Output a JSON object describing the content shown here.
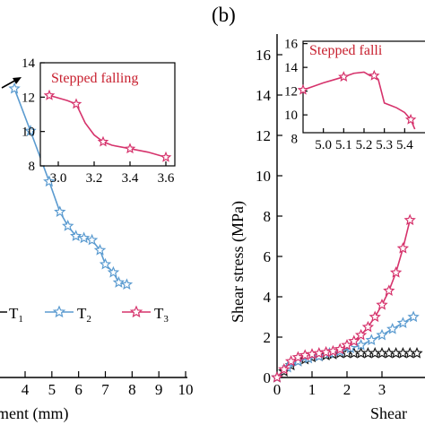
{
  "panel_b_label": "(b)",
  "colors": {
    "T1": "#1a1a1a",
    "T2": "#5b9bd0",
    "T3": "#d6336c",
    "annotation": "#c8202f"
  },
  "chart_data": [
    {
      "type": "line",
      "panel": "a (partially visible)",
      "xlabel": "ment (mm)",
      "ylabel": "",
      "xlim": [
        3.4,
        10
      ],
      "ylim": [
        0,
        17
      ],
      "xticks": [
        "4",
        "5",
        "6",
        "7",
        "8",
        "9",
        "10"
      ],
      "legend": {
        "placement": "lower-left",
        "entries": [
          {
            "name_text": "T",
            "sub": "1",
            "key": "T1"
          },
          {
            "name_text": "T",
            "sub": "2",
            "key": "T2"
          },
          {
            "name_text": "T",
            "sub": "3",
            "key": "T3"
          }
        ]
      },
      "series": [
        {
          "name": "T2",
          "x": [
            3.6,
            4.2,
            4.9,
            5.3,
            5.6,
            5.9,
            6.2,
            6.5,
            6.8,
            7.0,
            7.3,
            7.5,
            7.8
          ],
          "y": [
            14.3,
            12.2,
            9.7,
            8.2,
            7.5,
            7.0,
            6.9,
            6.8,
            6.3,
            5.6,
            5.2,
            4.7,
            4.6
          ]
        }
      ],
      "inset": {
        "annotation": "Stepped falling",
        "xlim": [
          2.9,
          3.65
        ],
        "ylim": [
          8,
          14
        ],
        "xticks": [
          "3.0",
          "3.2",
          "3.4",
          "3.6"
        ],
        "yticks": [
          "8",
          "10",
          "12",
          "14"
        ],
        "series": [
          {
            "name": "T3",
            "x": [
              2.95,
              3.05,
              3.1,
              3.15,
              3.2,
              3.25,
              3.3,
              3.4,
              3.5,
              3.6
            ],
            "y": [
              12.1,
              11.8,
              11.6,
              10.5,
              9.8,
              9.4,
              9.2,
              9.0,
              8.8,
              8.5
            ],
            "markers": [
              0,
              2,
              5,
              7,
              9
            ]
          }
        ]
      }
    },
    {
      "type": "line",
      "panel": "b",
      "xlabel": "Shear",
      "ylabel": "Shear stress (MPa)",
      "xlim": [
        0,
        4
      ],
      "ylim": [
        0,
        16
      ],
      "xticks": [
        "0",
        "1",
        "2",
        "3"
      ],
      "yticks": [
        "0",
        "2",
        "4",
        "6",
        "8",
        "10",
        "12",
        "14",
        "16"
      ],
      "series": [
        {
          "name": "T1",
          "x": [
            0.0,
            0.2,
            0.4,
            0.6,
            0.8,
            1.0,
            1.2,
            1.4,
            1.6,
            1.8,
            2.0,
            2.2,
            2.4,
            2.6,
            2.8,
            3.0,
            3.2,
            3.4,
            3.6,
            3.8,
            4.0
          ],
          "y": [
            0.0,
            0.3,
            0.6,
            0.8,
            0.9,
            1.0,
            1.05,
            1.1,
            1.15,
            1.2,
            1.2,
            1.2,
            1.2,
            1.2,
            1.2,
            1.2,
            1.2,
            1.2,
            1.2,
            1.2,
            1.2
          ]
        },
        {
          "name": "T2",
          "x": [
            0.0,
            0.3,
            0.6,
            0.9,
            1.2,
            1.5,
            1.8,
            2.1,
            2.4,
            2.7,
            3.0,
            3.3,
            3.6,
            3.9
          ],
          "y": [
            0.0,
            0.5,
            0.8,
            0.95,
            1.05,
            1.2,
            1.3,
            1.45,
            1.6,
            1.85,
            2.1,
            2.4,
            2.7,
            3.0
          ]
        },
        {
          "name": "T3",
          "x": [
            0.0,
            0.2,
            0.4,
            0.6,
            0.8,
            1.0,
            1.2,
            1.4,
            1.6,
            1.8,
            2.0,
            2.2,
            2.4,
            2.6,
            2.8,
            3.0,
            3.2,
            3.4,
            3.6,
            3.8
          ],
          "y": [
            0.0,
            0.4,
            0.8,
            1.0,
            1.1,
            1.15,
            1.2,
            1.25,
            1.3,
            1.4,
            1.6,
            1.8,
            2.1,
            2.5,
            3.0,
            3.6,
            4.3,
            5.2,
            6.4,
            7.8
          ]
        }
      ],
      "inset": {
        "annotation": "Stepped falli",
        "xlim": [
          4.9,
          5.5
        ],
        "ylim": [
          8.5,
          16.2
        ],
        "xticks": [
          "5.0",
          "5.1",
          "5.2",
          "5.3",
          "5.4"
        ],
        "yticks": [
          "8",
          "10",
          "12",
          "14",
          "16"
        ],
        "series": [
          {
            "name": "T3",
            "x": [
              4.9,
              4.95,
              5.0,
              5.05,
              5.1,
              5.15,
              5.2,
              5.23,
              5.25,
              5.27,
              5.3,
              5.33,
              5.36,
              5.4,
              5.43,
              5.45
            ],
            "y": [
              12.1,
              12.4,
              12.7,
              12.95,
              13.2,
              13.5,
              13.6,
              13.3,
              13.3,
              13.0,
              11.0,
              10.8,
              10.6,
              10.2,
              9.6,
              8.8
            ],
            "markers": [
              0,
              4,
              8,
              14
            ]
          }
        ]
      }
    }
  ]
}
